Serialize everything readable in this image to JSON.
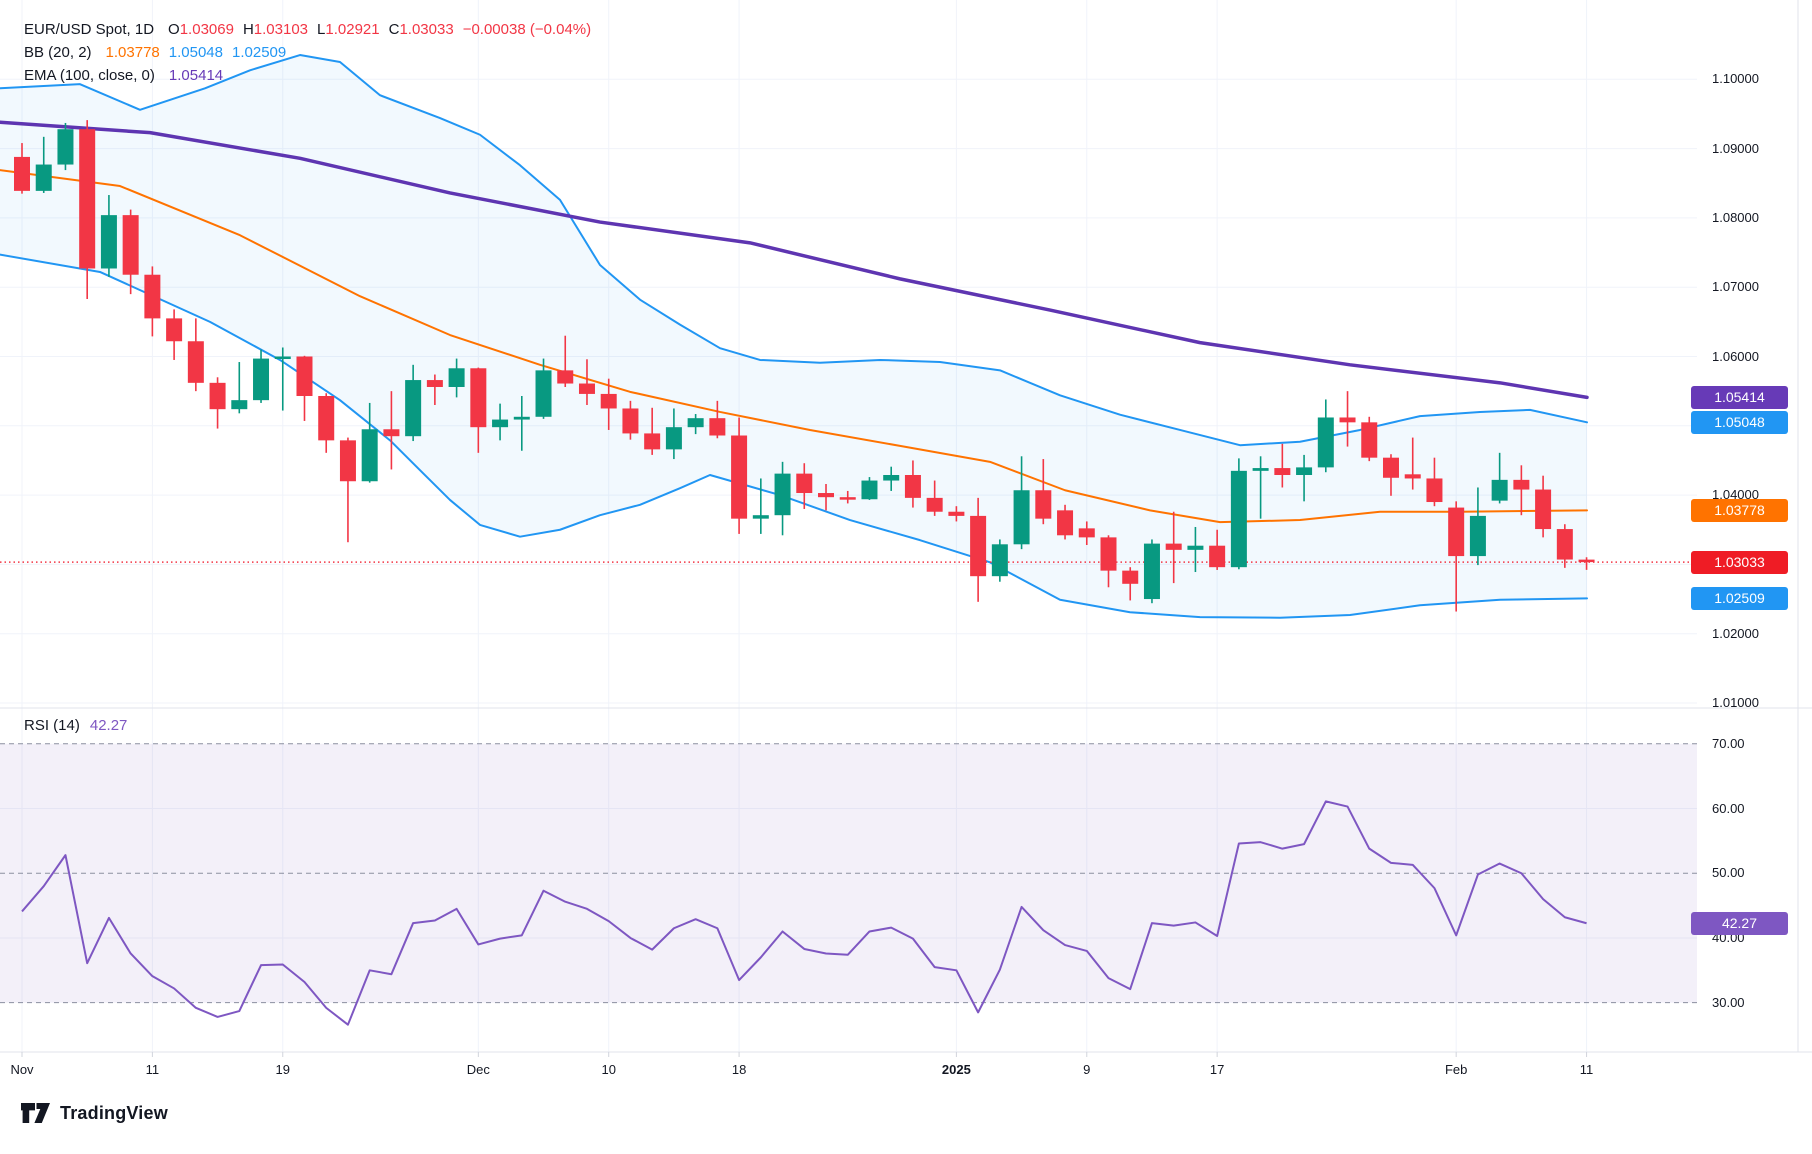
{
  "legend": {
    "title": "EUR/USD Spot, 1D",
    "o_label": "O",
    "o": "1.03069",
    "h_label": "H",
    "h": "1.03103",
    "l_label": "L",
    "l": "1.02921",
    "c_label": "C",
    "c": "1.03033",
    "change": "−0.00038 (−0.04%)"
  },
  "bb_legend": {
    "name": "BB (20, 2)",
    "basis": "1.03778",
    "upper": "1.05048",
    "lower": "1.02509"
  },
  "ema_legend": {
    "name": "EMA (100, close, 0)",
    "value": "1.05414"
  },
  "rsi_legend": {
    "name": "RSI (14)",
    "value": "42.27"
  },
  "watermark": "TradingView",
  "colors": {
    "up": "#089981",
    "down": "#f23645",
    "bb_line": "#2196f3",
    "bb_fill": "rgba(33,150,243,0.06)",
    "bb_basis": "#ff7300",
    "ema": "#5e35b1",
    "rsi_line": "#7e57c2",
    "rsi_fill": "rgba(126,87,194,0.09)",
    "close_line": "#f23645",
    "grid": "#f0f3fa",
    "separator": "#e0e3eb",
    "dashed": "#8b8fa0",
    "badge_purple": "#673ab7",
    "badge_blue": "#2196f3",
    "badge_orange": "#ff7300",
    "badge_red": "#ef1c25",
    "badge_rsi": "#7e57c2"
  },
  "price_axis": {
    "ticks": [
      "1.10000",
      "1.09000",
      "1.08000",
      "1.07000",
      "1.06000",
      "1.05000",
      "1.04000",
      "1.03000",
      "1.02000",
      "1.01000"
    ],
    "tick_values": [
      1.1,
      1.09,
      1.08,
      1.07,
      1.06,
      1.05,
      1.04,
      1.03,
      1.02,
      1.01
    ],
    "hidden_ticks": [
      "1.05000",
      "1.03000"
    ],
    "badges": [
      {
        "text": "1.05414",
        "value": 1.05414,
        "scale": "price",
        "color_key": "badge_purple",
        "name": "ema-price-badge"
      },
      {
        "text": "1.05048",
        "value": 1.05048,
        "scale": "price",
        "color_key": "badge_blue",
        "name": "bb-upper-badge"
      },
      {
        "text": "1.03778",
        "value": 1.03778,
        "scale": "price",
        "color_key": "badge_orange",
        "name": "bb-basis-badge"
      },
      {
        "text": "1.03033",
        "value": 1.03033,
        "scale": "price",
        "color_key": "badge_red",
        "name": "last-price-badge"
      },
      {
        "text": "1.02509",
        "value": 1.02509,
        "scale": "price",
        "color_key": "badge_blue",
        "name": "bb-lower-badge"
      },
      {
        "text": "42.27",
        "value": 42.27,
        "scale": "rsi",
        "color_key": "badge_rsi",
        "name": "rsi-value-badge"
      }
    ]
  },
  "rsi_axis": {
    "ticks": [
      "70.00",
      "60.00",
      "50.00",
      "40.00",
      "30.00"
    ],
    "tick_values": [
      70,
      60,
      50,
      40,
      30
    ]
  },
  "time_axis": {
    "labels": [
      {
        "text": "Nov",
        "bar": 0,
        "bold": false
      },
      {
        "text": "11",
        "bar": 6,
        "bold": false
      },
      {
        "text": "19",
        "bar": 12,
        "bold": false
      },
      {
        "text": "Dec",
        "bar": 21,
        "bold": false
      },
      {
        "text": "10",
        "bar": 27,
        "bold": false
      },
      {
        "text": "18",
        "bar": 33,
        "bold": false
      },
      {
        "text": "2025",
        "bar": 43,
        "bold": true
      },
      {
        "text": "9",
        "bar": 49,
        "bold": false
      },
      {
        "text": "17",
        "bar": 55,
        "bold": false
      },
      {
        "text": "Feb",
        "bar": 66,
        "bold": false
      },
      {
        "text": "11",
        "bar": 72,
        "bold": false
      }
    ]
  },
  "chart_data": {
    "type": "candlestick",
    "title": "EUR/USD Spot, 1D",
    "legend_ohlc": {
      "open": 1.03069,
      "high": 1.03103,
      "low": 1.02921,
      "close": 1.03033,
      "change": -0.00038,
      "change_pct": -0.04
    },
    "price_range_labels": [
      1.01,
      1.1
    ],
    "grid": true,
    "candles_ohlc": [
      [
        1.0888,
        1.0908,
        1.0835,
        1.0839
      ],
      [
        1.0839,
        1.0917,
        1.0836,
        1.0877
      ],
      [
        1.0877,
        1.0937,
        1.0869,
        1.0928
      ],
      [
        1.0928,
        1.0941,
        1.0683,
        1.0727
      ],
      [
        1.0727,
        1.0833,
        1.0715,
        1.0804
      ],
      [
        1.0804,
        1.0812,
        1.069,
        1.0718
      ],
      [
        1.0718,
        1.073,
        1.0629,
        1.0655
      ],
      [
        1.0655,
        1.0668,
        1.0595,
        1.0622
      ],
      [
        1.0622,
        1.0655,
        1.055,
        1.0562
      ],
      [
        1.0562,
        1.057,
        1.0496,
        1.0524
      ],
      [
        1.0524,
        1.0592,
        1.0518,
        1.0537
      ],
      [
        1.0537,
        1.061,
        1.0533,
        1.0597
      ],
      [
        1.0597,
        1.0613,
        1.0522,
        1.06
      ],
      [
        1.06,
        1.0601,
        1.0507,
        1.0543
      ],
      [
        1.0543,
        1.0547,
        1.0461,
        1.0479
      ],
      [
        1.0479,
        1.0483,
        1.0332,
        1.042
      ],
      [
        1.042,
        1.0533,
        1.0418,
        1.0495
      ],
      [
        1.0495,
        1.055,
        1.0437,
        1.0485
      ],
      [
        1.0485,
        1.0588,
        1.0478,
        1.0566
      ],
      [
        1.0566,
        1.0574,
        1.053,
        1.0556
      ],
      [
        1.0556,
        1.0597,
        1.0541,
        1.0583
      ],
      [
        1.0583,
        1.0584,
        1.0461,
        1.0498
      ],
      [
        1.0498,
        1.0532,
        1.0479,
        1.0509
      ],
      [
        1.0509,
        1.0543,
        1.0464,
        1.0513
      ],
      [
        1.0513,
        1.0597,
        1.051,
        1.058
      ],
      [
        1.058,
        1.063,
        1.0556,
        1.0561
      ],
      [
        1.0561,
        1.0596,
        1.053,
        1.0546
      ],
      [
        1.0546,
        1.0568,
        1.0494,
        1.0525
      ],
      [
        1.0525,
        1.0536,
        1.048,
        1.0489
      ],
      [
        1.0489,
        1.0526,
        1.0458,
        1.0466
      ],
      [
        1.0466,
        1.0525,
        1.0452,
        1.0498
      ],
      [
        1.0498,
        1.0517,
        1.0488,
        1.0511
      ],
      [
        1.0511,
        1.0536,
        1.0482,
        1.0486
      ],
      [
        1.0486,
        1.0512,
        1.0344,
        1.0366
      ],
      [
        1.0366,
        1.0424,
        1.0344,
        1.0371
      ],
      [
        1.0371,
        1.0448,
        1.0342,
        1.0431
      ],
      [
        1.0431,
        1.0446,
        1.038,
        1.0403
      ],
      [
        1.0403,
        1.0416,
        1.0378,
        1.0397
      ],
      [
        1.0397,
        1.0406,
        1.0388,
        1.0394
      ],
      [
        1.0394,
        1.0426,
        1.0393,
        1.0421
      ],
      [
        1.0421,
        1.0441,
        1.0406,
        1.0429
      ],
      [
        1.0429,
        1.045,
        1.0382,
        1.0396
      ],
      [
        1.0396,
        1.0421,
        1.037,
        1.0376
      ],
      [
        1.0376,
        1.0384,
        1.0362,
        1.037
      ],
      [
        1.037,
        1.0396,
        1.0246,
        1.0283
      ],
      [
        1.0283,
        1.0336,
        1.0275,
        1.0329
      ],
      [
        1.0329,
        1.0456,
        1.0322,
        1.0407
      ],
      [
        1.0407,
        1.0452,
        1.0358,
        1.0366
      ],
      [
        1.0378,
        1.0386,
        1.0336,
        1.0342
      ],
      [
        1.0352,
        1.0362,
        1.0328,
        1.0339
      ],
      [
        1.0339,
        1.0342,
        1.0267,
        1.0291
      ],
      [
        1.0291,
        1.0296,
        1.0248,
        1.0272
      ],
      [
        1.025,
        1.0336,
        1.0244,
        1.033
      ],
      [
        1.033,
        1.0376,
        1.0273,
        1.0321
      ],
      [
        1.0321,
        1.0354,
        1.0289,
        1.0327
      ],
      [
        1.0327,
        1.035,
        1.0292,
        1.0296
      ],
      [
        1.0296,
        1.0453,
        1.0293,
        1.0435
      ],
      [
        1.0435,
        1.0456,
        1.0366,
        1.0439
      ],
      [
        1.0439,
        1.0474,
        1.0411,
        1.0429
      ],
      [
        1.0429,
        1.0458,
        1.0391,
        1.044
      ],
      [
        1.044,
        1.0538,
        1.0433,
        1.0512
      ],
      [
        1.0512,
        1.055,
        1.047,
        1.0505
      ],
      [
        1.0505,
        1.0513,
        1.0449,
        1.0454
      ],
      [
        1.0454,
        1.0459,
        1.0399,
        1.0425
      ],
      [
        1.043,
        1.0483,
        1.0408,
        1.0424
      ],
      [
        1.0424,
        1.0454,
        1.0384,
        1.039
      ],
      [
        1.0382,
        1.0391,
        1.0232,
        1.0312
      ],
      [
        1.0312,
        1.0411,
        1.0299,
        1.037
      ],
      [
        1.0392,
        1.0461,
        1.0388,
        1.0422
      ],
      [
        1.0422,
        1.0443,
        1.0371,
        1.0408
      ],
      [
        1.0408,
        1.0428,
        1.0339,
        1.0351
      ],
      [
        1.0351,
        1.0358,
        1.0295,
        1.0307
      ],
      [
        1.03069,
        1.03103,
        1.02921,
        1.03033
      ]
    ],
    "ema100": [
      [
        0,
        1.0938
      ],
      [
        150,
        1.0923
      ],
      [
        300,
        1.0886
      ],
      [
        450,
        1.0836
      ],
      [
        600,
        1.0794
      ],
      [
        750,
        1.0764
      ],
      [
        900,
        1.0712
      ],
      [
        1050,
        1.0667
      ],
      [
        1200,
        1.062
      ],
      [
        1350,
        1.0588
      ],
      [
        1500,
        1.0562
      ],
      [
        1587,
        1.0541
      ]
    ],
    "bb_upper": [
      [
        0,
        1.0987
      ],
      [
        80,
        1.0993
      ],
      [
        140,
        1.0956
      ],
      [
        205,
        1.0987
      ],
      [
        250,
        1.1013
      ],
      [
        300,
        1.1035
      ],
      [
        340,
        1.1025
      ],
      [
        380,
        1.0977
      ],
      [
        440,
        1.0944
      ],
      [
        480,
        1.092
      ],
      [
        520,
        1.0876
      ],
      [
        560,
        1.0826
      ],
      [
        600,
        1.0732
      ],
      [
        640,
        1.0682
      ],
      [
        680,
        1.0646
      ],
      [
        720,
        1.0612
      ],
      [
        760,
        1.0595
      ],
      [
        820,
        1.0591
      ],
      [
        880,
        1.0595
      ],
      [
        940,
        1.0592
      ],
      [
        1000,
        1.058
      ],
      [
        1060,
        1.0544
      ],
      [
        1120,
        1.0516
      ],
      [
        1180,
        1.0494
      ],
      [
        1240,
        1.0472
      ],
      [
        1300,
        1.0477
      ],
      [
        1360,
        1.0494
      ],
      [
        1420,
        1.0514
      ],
      [
        1480,
        1.052
      ],
      [
        1530,
        1.0523
      ],
      [
        1587,
        1.0505
      ]
    ],
    "bb_basis": [
      [
        0,
        1.0869
      ],
      [
        120,
        1.0846
      ],
      [
        240,
        1.0775
      ],
      [
        360,
        1.0687
      ],
      [
        450,
        1.0631
      ],
      [
        540,
        1.0588
      ],
      [
        630,
        1.0549
      ],
      [
        720,
        1.052
      ],
      [
        810,
        1.0494
      ],
      [
        900,
        1.0471
      ],
      [
        990,
        1.0448
      ],
      [
        1065,
        1.0407
      ],
      [
        1150,
        1.0378
      ],
      [
        1220,
        1.0361
      ],
      [
        1300,
        1.0364
      ],
      [
        1380,
        1.0376
      ],
      [
        1460,
        1.0376
      ],
      [
        1587,
        1.0378
      ]
    ],
    "bb_lower": [
      [
        0,
        1.0747
      ],
      [
        100,
        1.0722
      ],
      [
        210,
        1.065
      ],
      [
        280,
        1.0595
      ],
      [
        340,
        1.0537
      ],
      [
        390,
        1.0479
      ],
      [
        420,
        1.0436
      ],
      [
        450,
        1.0393
      ],
      [
        480,
        1.0357
      ],
      [
        520,
        1.034
      ],
      [
        560,
        1.035
      ],
      [
        600,
        1.0371
      ],
      [
        640,
        1.0386
      ],
      [
        680,
        1.041
      ],
      [
        710,
        1.0429
      ],
      [
        780,
        1.04
      ],
      [
        850,
        1.0364
      ],
      [
        920,
        1.0335
      ],
      [
        990,
        1.0303
      ],
      [
        1060,
        1.0249
      ],
      [
        1130,
        1.0231
      ],
      [
        1200,
        1.0224
      ],
      [
        1280,
        1.0223
      ],
      [
        1350,
        1.0227
      ],
      [
        1420,
        1.0241
      ],
      [
        1500,
        1.0249
      ],
      [
        1587,
        1.0251
      ]
    ],
    "rsi": [
      44.1,
      48.0,
      52.8,
      36.1,
      43.1,
      37.6,
      34.1,
      32.2,
      29.2,
      27.8,
      28.7,
      35.8,
      35.9,
      33.2,
      29.2,
      26.6,
      35.0,
      34.4,
      42.3,
      42.7,
      44.5,
      39.0,
      39.9,
      40.4,
      47.3,
      45.6,
      44.5,
      42.6,
      40.0,
      38.2,
      41.5,
      42.9,
      41.5,
      33.5,
      37.0,
      41.0,
      38.3,
      37.6,
      37.4,
      41.0,
      41.6,
      39.9,
      35.5,
      35.0,
      28.5,
      35.1,
      44.8,
      41.2,
      38.9,
      38.0,
      33.8,
      32.1,
      42.3,
      41.9,
      42.4,
      40.3,
      54.6,
      54.8,
      53.8,
      54.5,
      61.1,
      60.3,
      53.8,
      51.6,
      51.3,
      47.7,
      40.4,
      49.8,
      51.5,
      50.0,
      46.0,
      43.2,
      42.27
    ],
    "last_close": 1.03033,
    "indicator_last_values": {
      "ema100": 1.05414,
      "bb_upper": 1.05048,
      "bb_basis": 1.03778,
      "bb_lower": 1.02509,
      "rsi": 42.27
    },
    "rsi_levels": {
      "overbought": 70,
      "middle": 50,
      "oversold": 30
    }
  }
}
